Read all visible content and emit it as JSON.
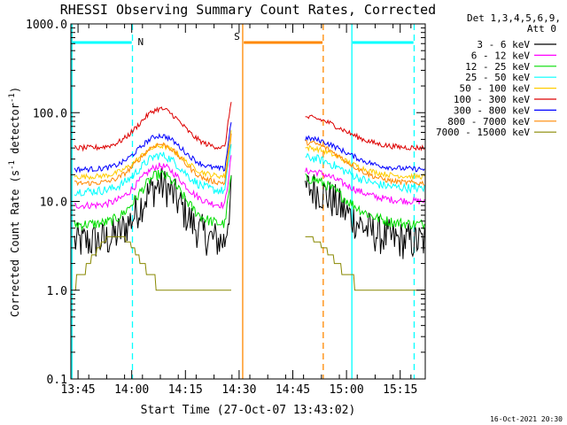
{
  "chart_data": {
    "type": "line",
    "title": "RHESSI Observing Summary Count Rates, Corrected",
    "xlabel": "Start Time (27-Oct-07 13:43:02)",
    "ylabel": "Corrected Count Rate (s",
    "ylabel_sup1": "-1",
    "ylabel_mid": " detector",
    "ylabel_sup2": "-1",
    "ylabel_end": ")",
    "yscale": "log",
    "ylim": [
      0.1,
      1000.0
    ],
    "xlim_minutes": [
      0,
      99
    ],
    "y_tick_labels": [
      "0.1",
      "1.0",
      "10.0",
      "100.0",
      "1000.0"
    ],
    "y_tick_values": [
      0.1,
      1.0,
      10.0,
      100.0,
      1000.0
    ],
    "x_tick_labels": [
      "13:45",
      "14:00",
      "14:15",
      "14:30",
      "14:45",
      "15:00",
      "15:15"
    ],
    "x_tick_minutes": [
      2,
      17,
      32,
      47,
      62,
      77,
      92
    ],
    "legend_header_1": "Det 1,3,4,5,6,9,",
    "legend_header_2": "Att 0",
    "footer_date": "16-Oct-2021 20:30",
    "series": [
      {
        "name": "3 - 6 keV",
        "color": "#000000",
        "base": 3.5,
        "peak": 15,
        "base2": 3.5,
        "r1": 14,
        "noise": 0.22
      },
      {
        "name": "6 - 12 keV",
        "color": "#ff00ff",
        "base": 9.0,
        "peak": 25,
        "base2": 10,
        "r1": 22,
        "noise": 0.04
      },
      {
        "name": "12 - 25 keV",
        "color": "#00dd00",
        "base": 5.5,
        "peak": 20,
        "base2": 5.5,
        "r1": 18,
        "noise": 0.06
      },
      {
        "name": "25 - 50 keV",
        "color": "#00ffff",
        "base": 13,
        "peak": 33,
        "base2": 14,
        "r1": 31,
        "noise": 0.05
      },
      {
        "name": "50 - 100 keV",
        "color": "#ffcc00",
        "base": 19,
        "peak": 42,
        "base2": 19,
        "r1": 40,
        "noise": 0.03
      },
      {
        "name": "100 - 300 keV",
        "color": "#dd0000",
        "base": 40,
        "peak": 110,
        "base2": 40,
        "r1": 88,
        "noise": 0.03
      },
      {
        "name": "300 - 800 keV",
        "color": "#0000ff",
        "base": 23,
        "peak": 55,
        "base2": 23,
        "r1": 51,
        "noise": 0.03
      },
      {
        "name": "800 - 7000 keV",
        "color": "#ff8800",
        "base": 16,
        "peak": 44,
        "base2": 16,
        "r1": 46,
        "noise": 0.03
      },
      {
        "name": "7000 - 15000 keV",
        "color": "#888800",
        "base": 1.0,
        "peak": 4.2,
        "base2": 1.0,
        "r1": 4.0,
        "noise": 0.0
      }
    ],
    "annotations": [
      {
        "label": "N",
        "color": "#00ffff"
      },
      {
        "label": "S",
        "color": "#ff8800"
      }
    ]
  }
}
